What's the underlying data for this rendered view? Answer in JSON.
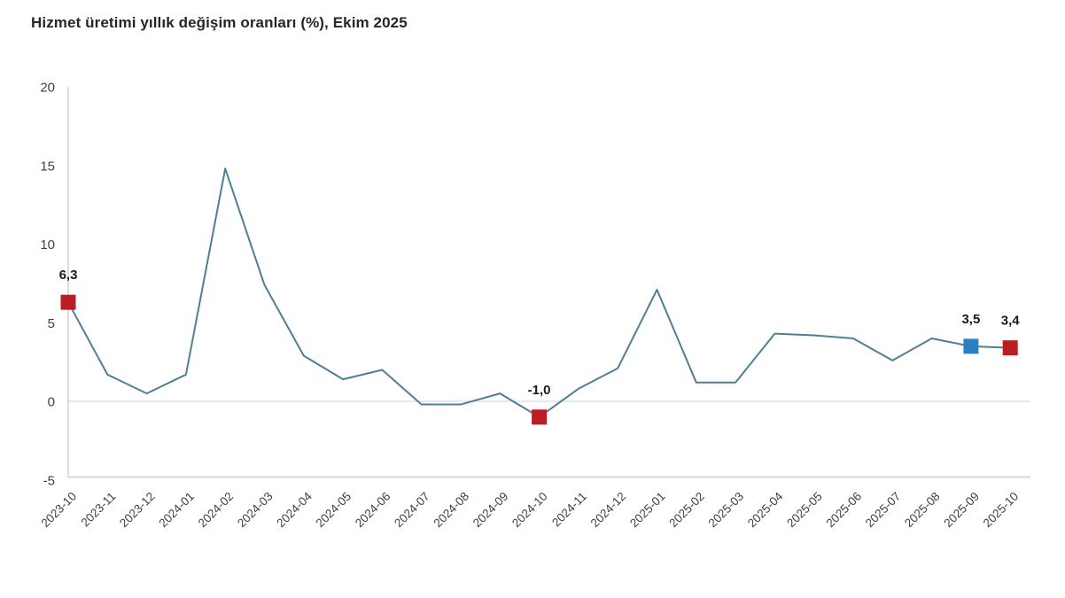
{
  "title": "Hizmet üretimi yıllık değişim oranları (%), Ekim 2025",
  "colors": {
    "line": "#4e7f94",
    "marker_red": "#b91e24",
    "marker_blue": "#2e7fc2",
    "axis_line": "#cccccc",
    "zero_line": "#e2e2e2",
    "tick_text": "#404040",
    "title_text": "#262626",
    "point_label_text": "#1a1a1a",
    "background": "#ffffff"
  },
  "chart_data": {
    "type": "line",
    "title": "Hizmet üretimi yıllık değişim oranları (%), Ekim 2025",
    "xlabel": "",
    "ylabel": "",
    "ylim": [
      -5,
      20
    ],
    "yticks": [
      20,
      15,
      10,
      5,
      0,
      -5
    ],
    "grid": "zero-line-only",
    "legend": "none",
    "categories": [
      "2023-10",
      "2023-11",
      "2023-12",
      "2024-01",
      "2024-02",
      "2024-03",
      "2024-04",
      "2024-05",
      "2024-06",
      "2024-07",
      "2024-08",
      "2024-09",
      "2024-10",
      "2024-11",
      "2024-12",
      "2025-01",
      "2025-02",
      "2025-03",
      "2025-04",
      "2025-05",
      "2025-06",
      "2025-07",
      "2025-08",
      "2025-09",
      "2025-10"
    ],
    "values": [
      6.3,
      1.7,
      0.5,
      1.7,
      14.8,
      7.4,
      2.9,
      1.4,
      2.0,
      -0.2,
      -0.2,
      0.5,
      -1.0,
      0.8,
      2.1,
      7.1,
      1.2,
      1.2,
      4.3,
      4.2,
      4.0,
      2.6,
      4.0,
      3.5,
      3.4
    ],
    "point_labels": [
      {
        "index": 0,
        "text": "6,3",
        "marker_color": "#b91e24"
      },
      {
        "index": 12,
        "text": "-1,0",
        "marker_color": "#b91e24"
      },
      {
        "index": 23,
        "text": "3,5",
        "marker_color": "#2e7fc2"
      },
      {
        "index": 24,
        "text": "3,4",
        "marker_color": "#b91e24"
      }
    ]
  }
}
